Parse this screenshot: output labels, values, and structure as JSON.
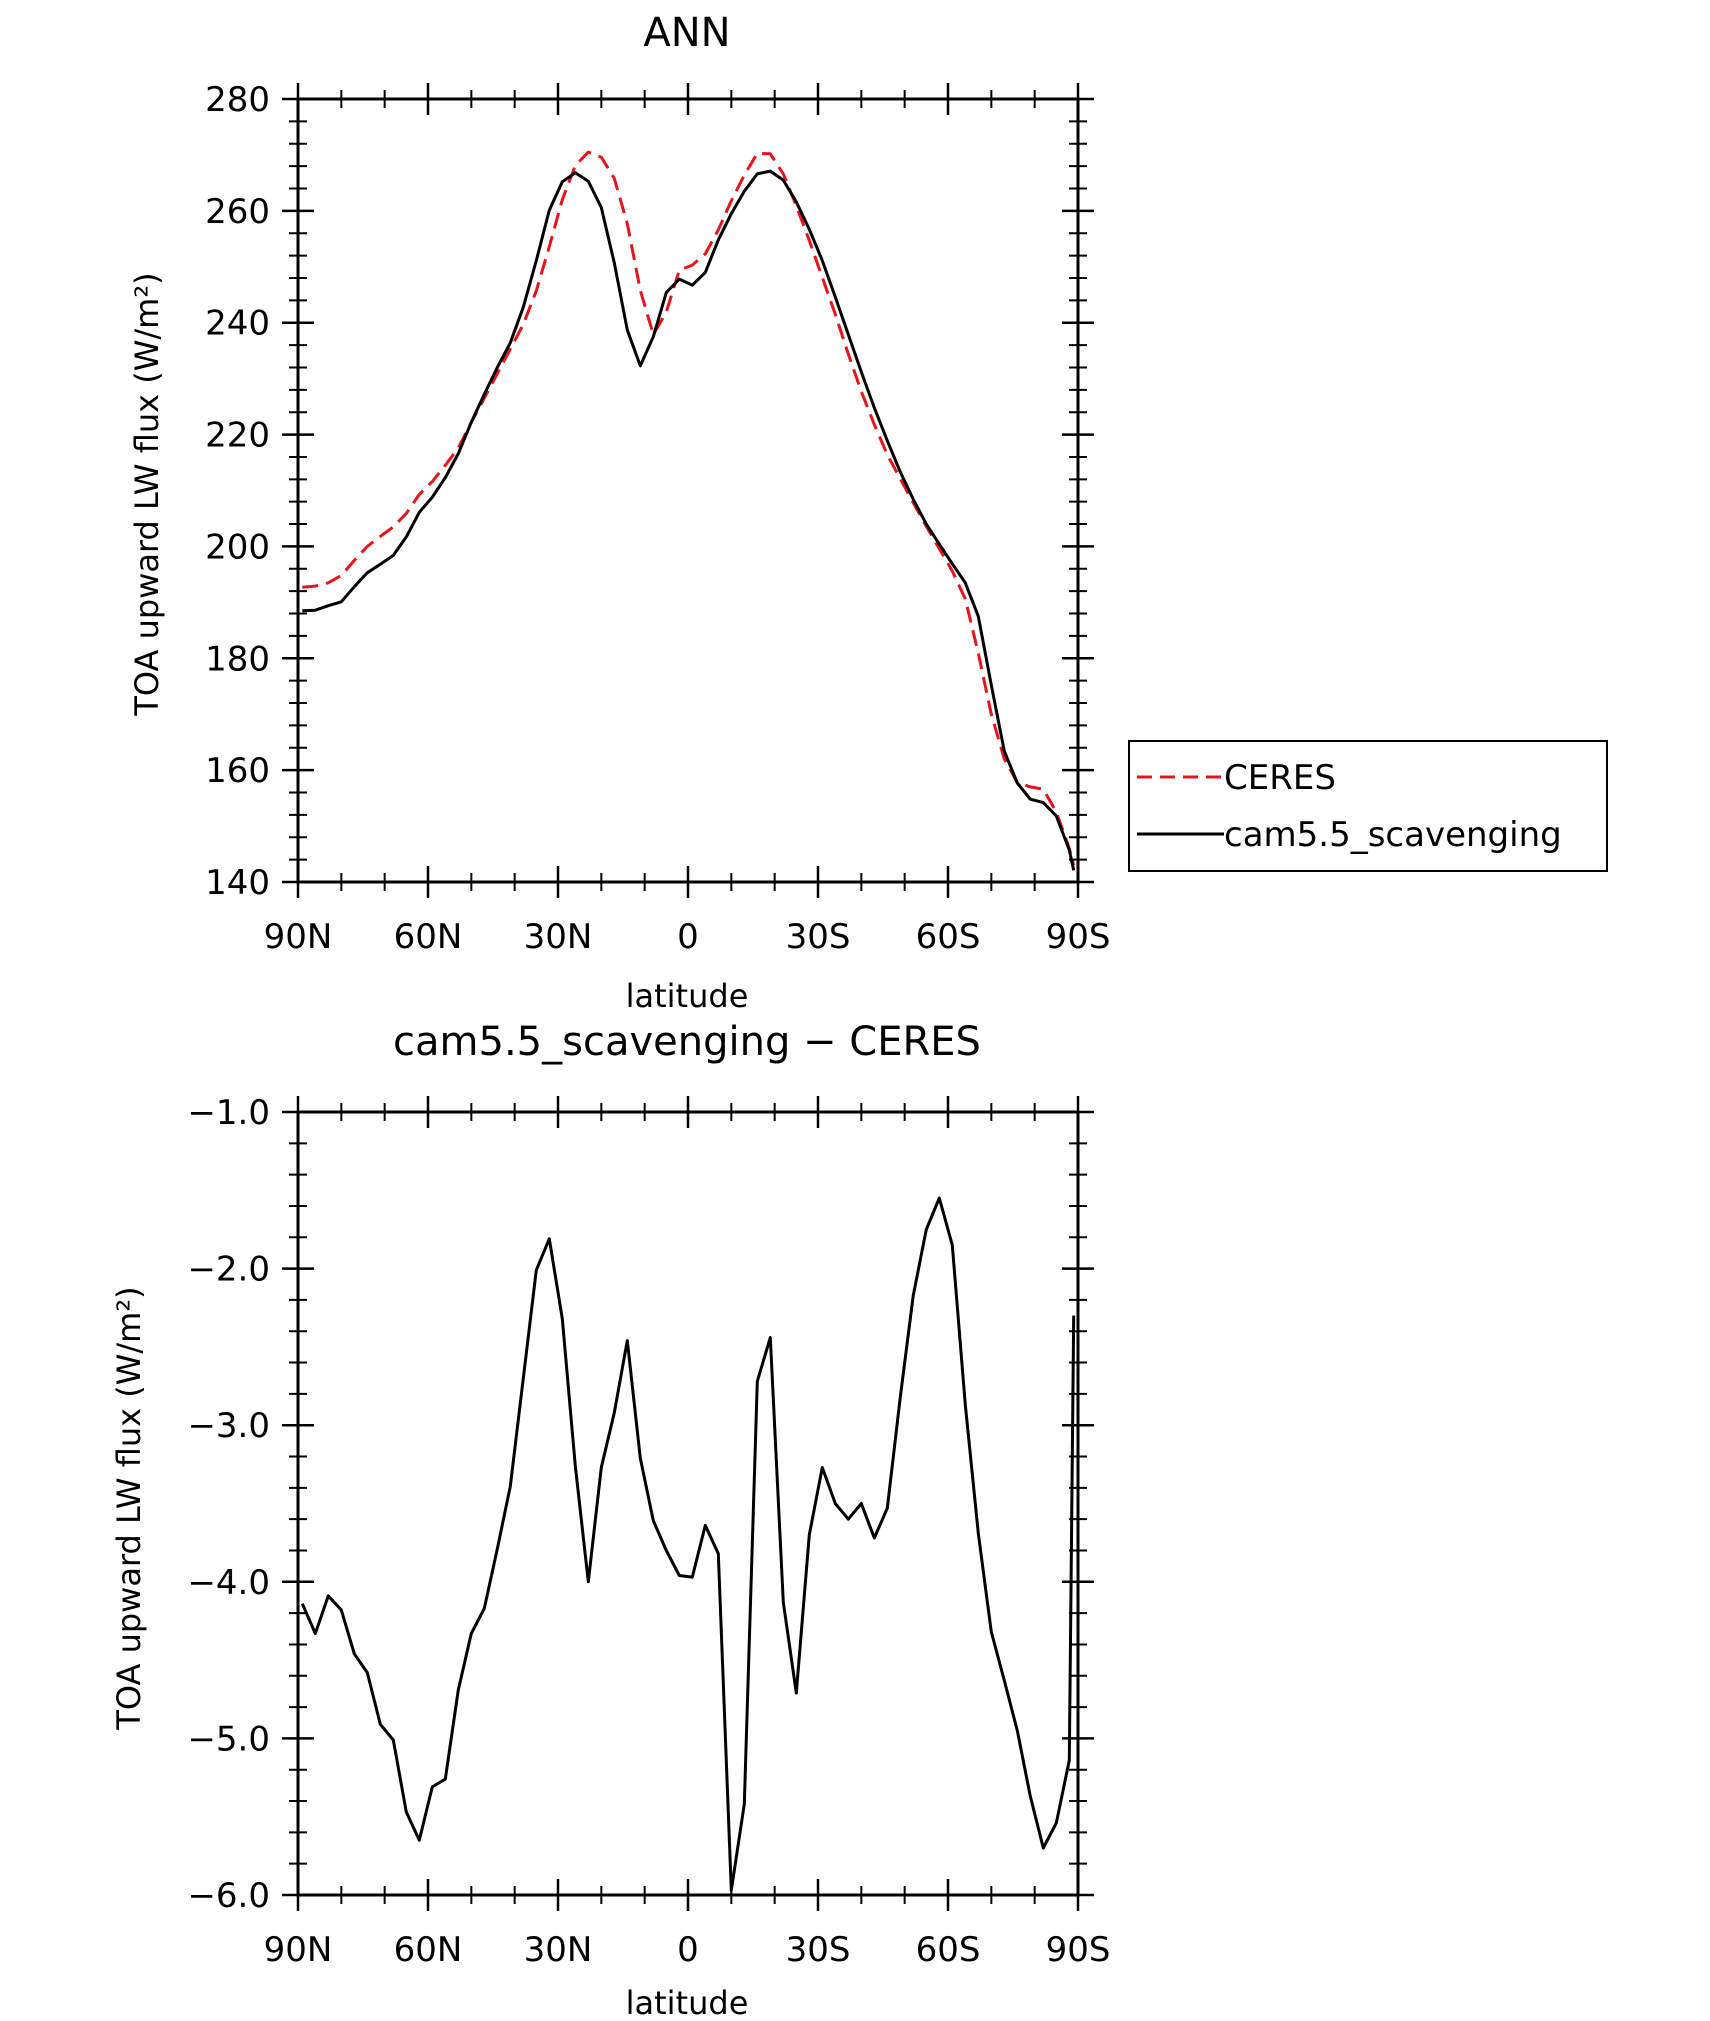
{
  "chart_data": [
    {
      "type": "line",
      "title": "ANN",
      "xlabel": "latitude",
      "ylabel": "TOA upward LW flux (W/m²)",
      "xlim": [
        90,
        -90
      ],
      "ylim": [
        140,
        280
      ],
      "x_ticks": [
        {
          "value": 90,
          "label": "90N"
        },
        {
          "value": 60,
          "label": "60N"
        },
        {
          "value": 30,
          "label": "30N"
        },
        {
          "value": 0,
          "label": "0"
        },
        {
          "value": -30,
          "label": "30S"
        },
        {
          "value": -60,
          "label": "60S"
        },
        {
          "value": -90,
          "label": "90S"
        }
      ],
      "y_ticks": [
        {
          "value": 140,
          "label": "140"
        },
        {
          "value": 160,
          "label": "160"
        },
        {
          "value": 180,
          "label": "180"
        },
        {
          "value": 200,
          "label": "200"
        },
        {
          "value": 220,
          "label": "220"
        },
        {
          "value": 240,
          "label": "240"
        },
        {
          "value": 260,
          "label": "260"
        },
        {
          "value": 280,
          "label": "280"
        }
      ],
      "legend": "right",
      "series": [
        {
          "name": "CERES",
          "color": "#e8141c",
          "dash": "dashed",
          "x": [
            89,
            86,
            83,
            80,
            77,
            74,
            71,
            68,
            65,
            62,
            59,
            56,
            53,
            50,
            47,
            44,
            41,
            38,
            35,
            32,
            29,
            26,
            23,
            20,
            17,
            14,
            11,
            8,
            5,
            2,
            -1,
            -4,
            -7,
            -10,
            -13,
            -16,
            -19,
            -22,
            -25,
            -28,
            -31,
            -34,
            -37,
            -40,
            -43,
            -46,
            -49,
            -52,
            -55,
            -58,
            -61,
            -64,
            -67,
            -70,
            -73,
            -76,
            -79,
            -82,
            -85,
            -88,
            -89
          ],
          "y": [
            192.7,
            192.9,
            193.5,
            194.8,
            197.5,
            200.0,
            201.8,
            203.5,
            205.9,
            209.3,
            211.6,
            214.5,
            217.6,
            222.2,
            226.5,
            230.9,
            235.3,
            239.7,
            245.7,
            253.6,
            262.0,
            268.1,
            270.5,
            269.6,
            265.8,
            257.7,
            245.8,
            237.9,
            241.9,
            249.4,
            250.3,
            252.3,
            256.6,
            261.8,
            266.4,
            270.3,
            270.2,
            266.6,
            260.9,
            254.7,
            248.1,
            241.5,
            234.4,
            227.7,
            221.8,
            216.4,
            212.1,
            207.8,
            203.6,
            199.6,
            195.6,
            190.6,
            180.9,
            170.0,
            162.0,
            157.8,
            157.0,
            156.6,
            152.5,
            146.0,
            143.0
          ]
        },
        {
          "name": "cam5.5_scavenging",
          "color": "#000000",
          "dash": "solid",
          "x": [
            89,
            86,
            83,
            80,
            77,
            74,
            71,
            68,
            65,
            62,
            59,
            56,
            53,
            50,
            47,
            44,
            41,
            38,
            35,
            32,
            29,
            26,
            23,
            20,
            17,
            14,
            11,
            8,
            5,
            2,
            -1,
            -4,
            -7,
            -10,
            -13,
            -16,
            -19,
            -22,
            -25,
            -28,
            -31,
            -34,
            -37,
            -40,
            -43,
            -46,
            -49,
            -52,
            -55,
            -58,
            -61,
            -64,
            -67,
            -70,
            -73,
            -76,
            -79,
            -82,
            -85,
            -88,
            -89
          ],
          "y": [
            188.5,
            188.6,
            189.4,
            190.1,
            192.8,
            195.3,
            196.8,
            198.4,
            201.7,
            206.1,
            208.8,
            212.3,
            216.6,
            222.2,
            227.2,
            232.0,
            236.4,
            242.8,
            251.1,
            260.1,
            265.2,
            266.8,
            265.3,
            260.6,
            250.7,
            238.7,
            232.3,
            237.5,
            245.4,
            247.8,
            246.7,
            249.0,
            254.8,
            259.5,
            263.5,
            266.6,
            267.1,
            265.5,
            261.6,
            256.7,
            251.1,
            244.6,
            237.9,
            231.2,
            224.8,
            218.9,
            213.3,
            208.4,
            204.0,
            200.4,
            196.9,
            193.5,
            187.5,
            175.2,
            163.4,
            157.7,
            154.8,
            154.2,
            151.8,
            145.7,
            142.1
          ]
        }
      ]
    },
    {
      "type": "line",
      "title": "cam5.5_scavenging − CERES",
      "xlabel": "latitude",
      "ylabel": "TOA upward LW flux (W/m²)",
      "xlim": [
        90,
        -90
      ],
      "ylim": [
        -6.0,
        -1.0
      ],
      "x_ticks": [
        {
          "value": 90,
          "label": "90N"
        },
        {
          "value": 60,
          "label": "60N"
        },
        {
          "value": 30,
          "label": "30N"
        },
        {
          "value": 0,
          "label": "0"
        },
        {
          "value": -30,
          "label": "30S"
        },
        {
          "value": -60,
          "label": "60S"
        },
        {
          "value": -90,
          "label": "90S"
        }
      ],
      "y_ticks": [
        {
          "value": -1.0,
          "label": "−1.0"
        },
        {
          "value": -2.0,
          "label": "−2.0"
        },
        {
          "value": -3.0,
          "label": "−3.0"
        },
        {
          "value": -4.0,
          "label": "−4.0"
        },
        {
          "value": -5.0,
          "label": "−5.0"
        },
        {
          "value": -6.0,
          "label": "−6.0"
        }
      ],
      "series": [
        {
          "color": "#000000",
          "dash": "solid",
          "x": [
            89,
            86,
            83,
            80,
            77,
            74,
            71,
            68,
            65,
            62,
            59,
            56,
            53,
            50,
            47,
            44,
            41,
            38,
            35,
            32,
            29,
            26,
            23,
            20,
            17,
            14,
            11,
            8,
            5,
            2,
            -1,
            -4,
            -7,
            -10,
            -13,
            -16,
            -19,
            -22,
            -25,
            -28,
            -31,
            -34,
            -37,
            -40,
            -43,
            -46,
            -49,
            -52,
            -55,
            -58,
            -61,
            -64,
            -67,
            -70,
            -73,
            -76,
            -79,
            -82,
            -85,
            -88,
            -89
          ],
          "y": [
            -4.14,
            -4.33,
            -4.09,
            -4.18,
            -4.46,
            -4.58,
            -4.91,
            -5.01,
            -5.47,
            -5.65,
            -5.31,
            -5.26,
            -4.69,
            -4.33,
            -4.17,
            -3.79,
            -3.39,
            -2.7,
            -2.01,
            -1.81,
            -2.32,
            -3.26,
            -4.0,
            -3.27,
            -2.92,
            -2.46,
            -3.21,
            -3.61,
            -3.8,
            -3.96,
            -3.97,
            -3.64,
            -3.82,
            -5.97,
            -5.42,
            -2.72,
            -2.44,
            -4.13,
            -4.71,
            -3.7,
            -3.27,
            -3.5,
            -3.6,
            -3.5,
            -3.72,
            -3.53,
            -2.82,
            -2.17,
            -1.75,
            -1.55,
            -1.85,
            -2.87,
            -3.69,
            -4.32,
            -4.63,
            -4.95,
            -5.37,
            -5.7,
            -5.54,
            -5.14,
            -2.3
          ]
        }
      ]
    }
  ]
}
